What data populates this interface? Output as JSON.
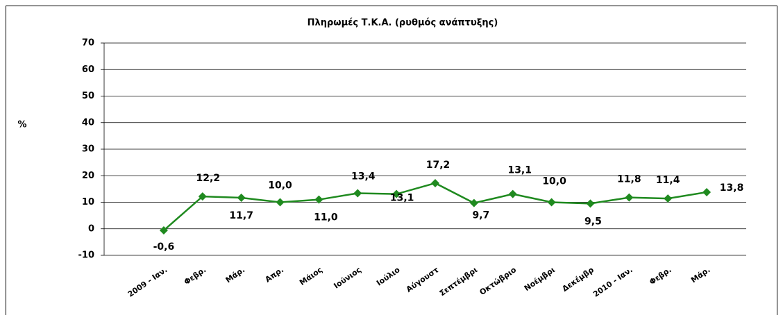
{
  "chart_data": {
    "type": "line",
    "title": "Πληρωμές Τ.Κ.Α. (ρυθμός ανάπτυξης)",
    "y_label": "%",
    "categories": [
      "2009 - Ιαν.",
      "Φεβρ.",
      "Μάρ.",
      "Απρ.",
      "Μάιος",
      "Ιούνιος",
      "Ιούλιο",
      "Αύγουστ",
      "Σεπτέμβρι",
      "Οκτώβριο",
      "Νοέμβρι",
      "Δεκέμβρ",
      "2010 - Ιαν.",
      "Φεβρ.",
      "Μάρ."
    ],
    "series": [
      {
        "name": "Πληρωμές Τ.Κ.Α.",
        "color": "#1f8a1f",
        "values": [
          -0.6,
          12.2,
          11.7,
          10.0,
          11.0,
          13.4,
          13.1,
          17.2,
          9.7,
          13.1,
          10.0,
          9.5,
          11.8,
          11.4,
          13.8
        ],
        "value_labels": [
          "-0,6",
          "12,2",
          "11,7",
          "10,0",
          "11,0",
          "13,4",
          "13,1",
          "17,2",
          "9,7",
          "13,1",
          "10,0",
          "9,5",
          "11,8",
          "11,4",
          "13,8"
        ]
      }
    ],
    "ylim": [
      -10,
      70
    ],
    "yticks": [
      -10,
      0,
      10,
      20,
      30,
      40,
      50,
      60,
      70
    ],
    "grid": true
  }
}
